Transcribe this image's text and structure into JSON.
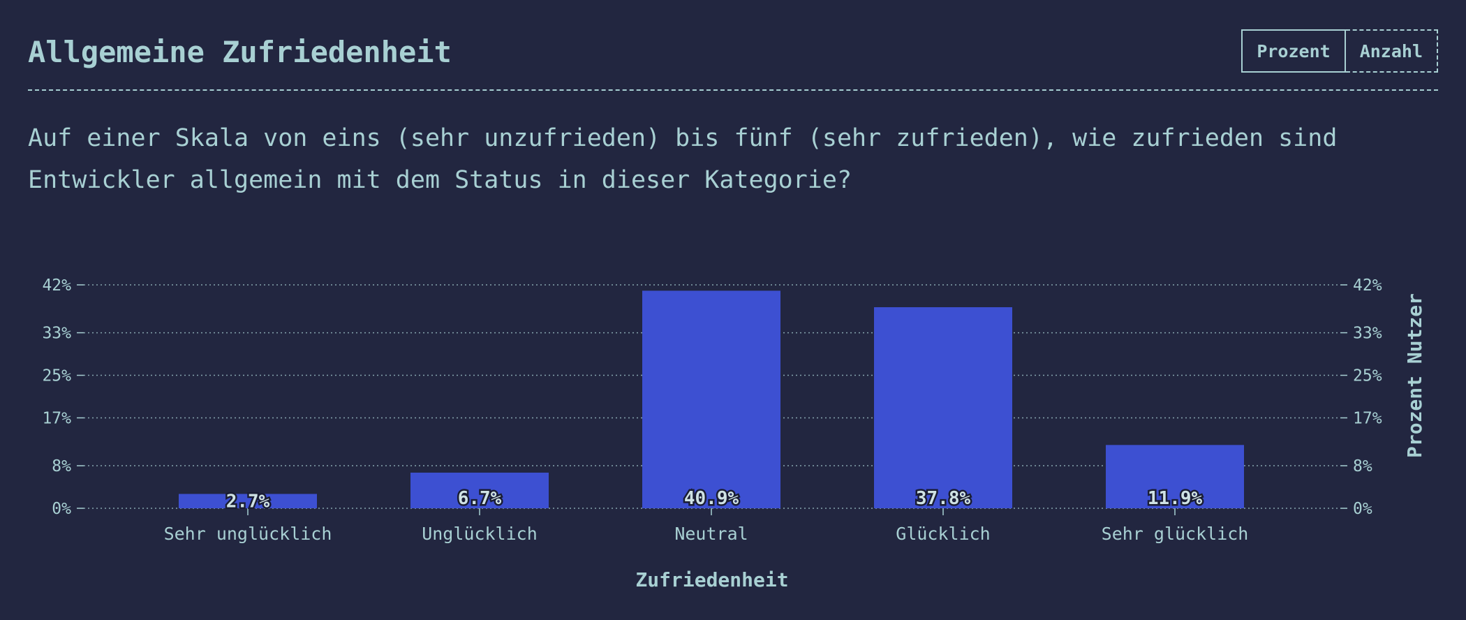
{
  "header": {
    "title": "Allgemeine Zufriedenheit",
    "toggle": {
      "percent_label": "Prozent",
      "count_label": "Anzahl",
      "selected": "Prozent"
    }
  },
  "question": "Auf einer Skala von eins (sehr unzufrieden) bis fünf (sehr zufrieden), wie zufrieden sind Entwickler allgemein mit dem Status in dieser Kategorie?",
  "colors": {
    "background": "#222640",
    "text": "#a8d0d3",
    "bar": "#3d50d2"
  },
  "chart_data": {
    "type": "bar",
    "categories": [
      "Sehr unglücklich",
      "Unglücklich",
      "Neutral",
      "Glücklich",
      "Sehr glücklich"
    ],
    "values": [
      2.7,
      6.7,
      40.9,
      37.8,
      11.9
    ],
    "data_labels": [
      "2.7%",
      "6.7%",
      "40.9%",
      "37.8%",
      "11.9%"
    ],
    "title": "",
    "xlabel": "Zufriedenheit",
    "ylabel": "Prozent Nutzer",
    "ylim": [
      0,
      42
    ],
    "yticks": [
      0,
      8,
      17,
      25,
      33,
      42
    ],
    "ytick_labels": [
      "0%",
      "8%",
      "17%",
      "25%",
      "33%",
      "42%"
    ],
    "grid": true,
    "legend": "none"
  }
}
